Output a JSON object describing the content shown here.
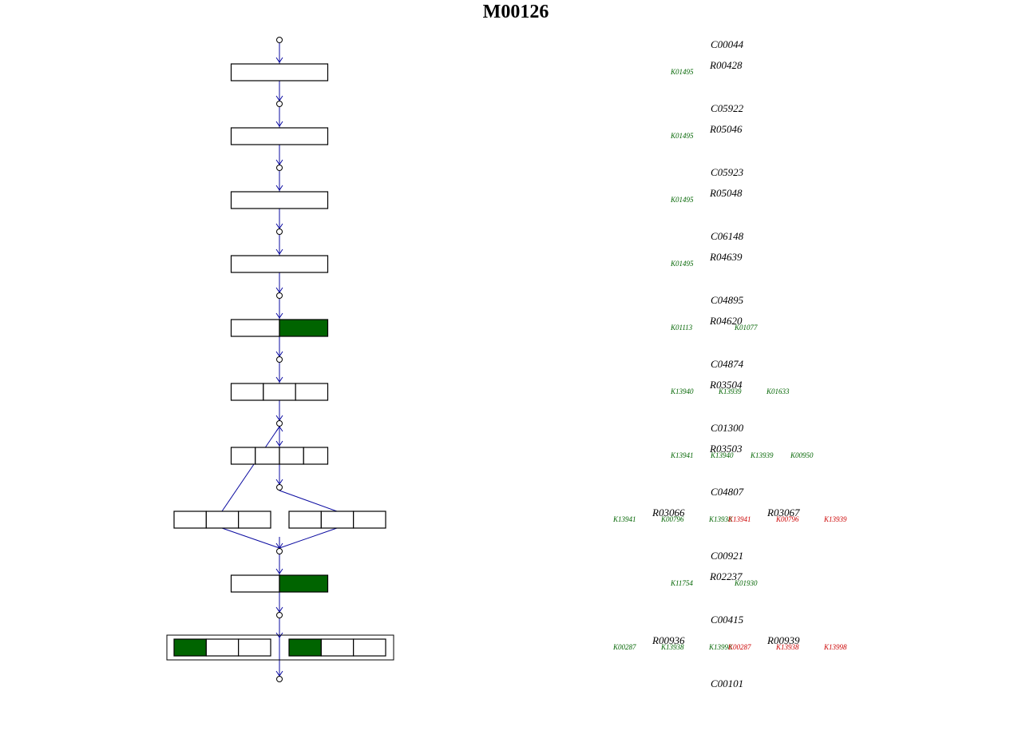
{
  "title": "M00126",
  "colors": {
    "edge": "#0a0aa0",
    "present": "#006400",
    "absent": "#cc0000",
    "box_border": "#000000"
  },
  "compounds": [
    "C00044",
    "C05922",
    "C05923",
    "C06148",
    "C04895",
    "C04874",
    "C01300",
    "C04807",
    "C00921",
    "C00415",
    "C00101"
  ],
  "rows": [
    {
      "type": "single",
      "segments": [
        0
      ],
      "reactions": [
        "R00428"
      ],
      "kos": [
        [
          "K01495"
        ]
      ]
    },
    {
      "type": "single",
      "segments": [
        0
      ],
      "reactions": [
        "R05046"
      ],
      "kos": [
        [
          "K01495"
        ]
      ]
    },
    {
      "type": "single",
      "segments": [
        0
      ],
      "reactions": [
        "R05048"
      ],
      "kos": [
        [
          "K01495"
        ]
      ]
    },
    {
      "type": "single",
      "segments": [
        0
      ],
      "reactions": [
        "R04639"
      ],
      "kos": [
        [
          "K01495"
        ]
      ]
    },
    {
      "type": "single",
      "segments": [
        0,
        1
      ],
      "reactions": [
        "R04620"
      ],
      "kos": [
        [
          "K01113",
          "K01077"
        ]
      ]
    },
    {
      "type": "single",
      "segments": [
        0,
        0,
        0
      ],
      "reactions": [
        "R03504"
      ],
      "kos": [
        [
          "K13940",
          "K13939",
          "K01633"
        ]
      ]
    },
    {
      "type": "single",
      "segments": [
        0,
        0,
        0,
        0
      ],
      "reactions": [
        "R03503"
      ],
      "kos": [
        [
          "K13941",
          "K13940",
          "K13939",
          "K00950"
        ]
      ]
    },
    {
      "type": "double",
      "segments": [
        [
          0,
          0,
          0
        ],
        [
          0,
          0,
          0
        ]
      ],
      "reactions": [
        "R03066",
        "R03067"
      ],
      "kos": [
        [
          "K13941",
          "K00796",
          "K13938"
        ],
        [
          "K13941",
          "K00796",
          "K13939"
        ]
      ]
    },
    {
      "type": "single",
      "segments": [
        0,
        1
      ],
      "reactions": [
        "R02237"
      ],
      "kos": [
        [
          "K11754",
          "K01930"
        ]
      ]
    },
    {
      "type": "double",
      "segments": [
        [
          1,
          0,
          0
        ],
        [
          1,
          0,
          0
        ]
      ],
      "reactions": [
        "R00936",
        "R00939"
      ],
      "kos": [
        [
          "K00287",
          "K13938",
          "K13998"
        ],
        [
          "K00287",
          "K13938",
          "K13998"
        ]
      ]
    }
  ],
  "ko_status": [
    [
      1
    ],
    [
      1
    ],
    [
      1
    ],
    [
      1
    ],
    [
      1,
      1
    ],
    [
      1,
      1,
      1
    ],
    [
      1,
      1,
      1,
      1
    ],
    [
      [
        1,
        1,
        1
      ],
      [
        0,
        0,
        0
      ]
    ],
    [
      1,
      1
    ],
    [
      [
        1,
        1,
        1
      ],
      [
        0,
        0,
        0
      ]
    ]
  ]
}
